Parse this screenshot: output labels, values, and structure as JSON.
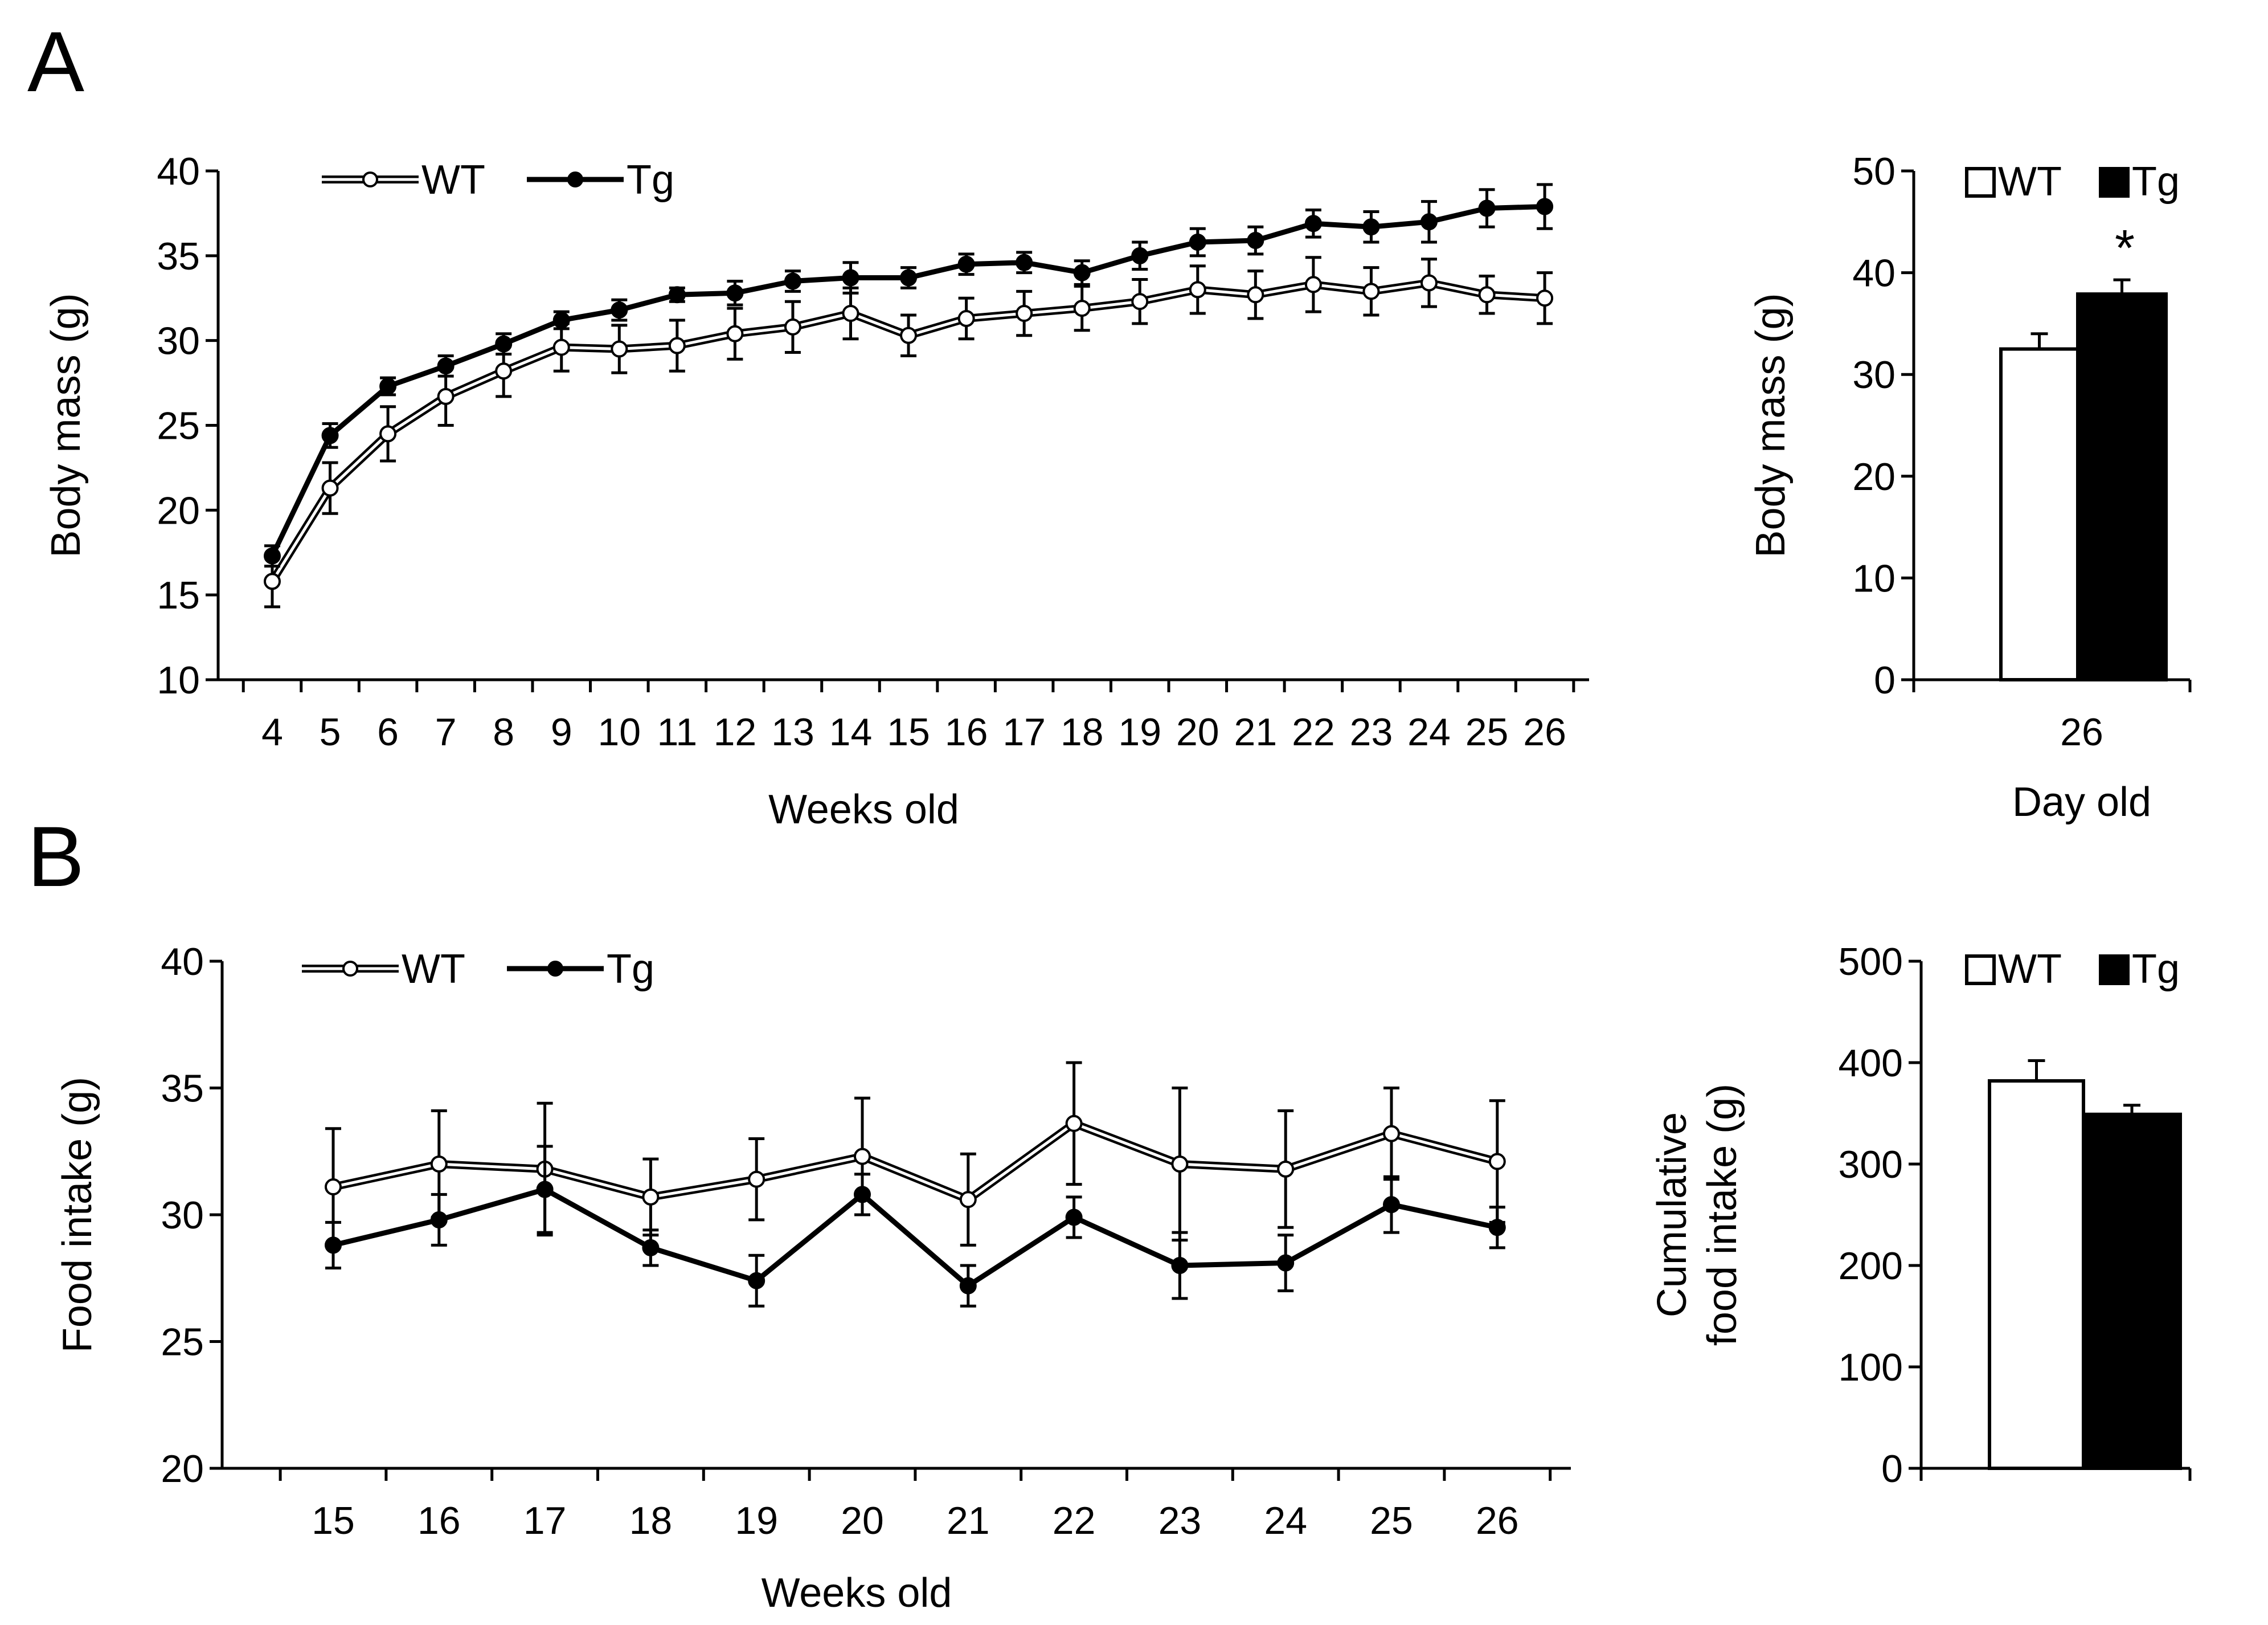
{
  "chart_data": [
    {
      "id": "A-line",
      "panel": "A",
      "type": "line",
      "title": "",
      "xlabel": "Weeks old",
      "ylabel": "Body mass (g)",
      "ylim": [
        10,
        40
      ],
      "yticks": [
        10,
        15,
        20,
        25,
        30,
        35,
        40
      ],
      "categories": [
        "4",
        "5",
        "6",
        "7",
        "8",
        "9",
        "10",
        "11",
        "12",
        "13",
        "14",
        "15",
        "16",
        "17",
        "18",
        "19",
        "20",
        "21",
        "22",
        "23",
        "24",
        "25",
        "26"
      ],
      "legend_position": "top-left",
      "series": [
        {
          "name": "WT",
          "marker": "open",
          "color": "#000000",
          "values": [
            15.8,
            21.3,
            24.5,
            26.7,
            28.2,
            29.6,
            29.5,
            29.7,
            30.4,
            30.8,
            31.6,
            30.3,
            31.3,
            31.6,
            31.9,
            32.3,
            33.0,
            32.7,
            33.3,
            32.9,
            33.4,
            32.7,
            32.5
          ],
          "errors": [
            1.5,
            1.5,
            1.6,
            1.7,
            1.5,
            1.4,
            1.4,
            1.5,
            1.5,
            1.5,
            1.5,
            1.2,
            1.2,
            1.3,
            1.3,
            1.3,
            1.4,
            1.4,
            1.6,
            1.4,
            1.4,
            1.1,
            1.5
          ]
        },
        {
          "name": "Tg",
          "marker": "filled",
          "color": "#000000",
          "values": [
            17.3,
            24.4,
            27.3,
            28.5,
            29.8,
            31.2,
            31.8,
            32.7,
            32.8,
            33.5,
            33.7,
            33.7,
            34.5,
            34.6,
            34.0,
            35.0,
            35.8,
            35.9,
            36.9,
            36.7,
            37.0,
            37.8,
            37.9
          ],
          "errors": [
            0.6,
            0.7,
            0.5,
            0.6,
            0.6,
            0.5,
            0.6,
            0.4,
            0.7,
            0.6,
            0.9,
            0.6,
            0.6,
            0.6,
            0.7,
            0.8,
            0.8,
            0.8,
            0.8,
            0.9,
            1.2,
            1.1,
            1.3
          ]
        }
      ]
    },
    {
      "id": "A-bar",
      "panel": "A",
      "type": "bar",
      "title": "",
      "xlabel": "Day old",
      "ylabel": "Body mass (g)",
      "ylim": [
        0,
        50
      ],
      "yticks": [
        0,
        10,
        20,
        30,
        40,
        50
      ],
      "categories": [
        "26"
      ],
      "legend_position": "top",
      "annotation": "*",
      "series": [
        {
          "name": "WT",
          "fill": "#ffffff",
          "values": [
            32.5
          ],
          "errors": [
            1.5
          ]
        },
        {
          "name": "Tg",
          "fill": "#000000",
          "values": [
            37.9
          ],
          "errors": [
            1.4
          ]
        }
      ]
    },
    {
      "id": "B-line",
      "panel": "B",
      "type": "line",
      "title": "",
      "xlabel": "Weeks old",
      "ylabel": "Food intake (g)",
      "ylim": [
        20,
        40
      ],
      "yticks": [
        20,
        25,
        30,
        35,
        40
      ],
      "categories": [
        "15",
        "16",
        "17",
        "18",
        "19",
        "20",
        "21",
        "22",
        "23",
        "24",
        "25",
        "26"
      ],
      "legend_position": "top-left",
      "series": [
        {
          "name": "WT",
          "marker": "open",
          "color": "#000000",
          "values": [
            31.1,
            32.0,
            31.8,
            30.7,
            31.4,
            32.3,
            30.6,
            33.6,
            32.0,
            31.8,
            33.2,
            32.1
          ],
          "errors": [
            2.3,
            2.1,
            2.6,
            1.5,
            1.6,
            2.3,
            1.8,
            2.4,
            3.0,
            2.3,
            1.8,
            2.4
          ]
        },
        {
          "name": "Tg",
          "marker": "filled",
          "color": "#000000",
          "values": [
            28.8,
            29.8,
            31.0,
            28.7,
            27.4,
            30.8,
            27.2,
            29.9,
            28.0,
            28.1,
            30.4,
            29.5
          ],
          "errors": [
            0.9,
            1.0,
            1.7,
            0.7,
            1.0,
            0.8,
            0.8,
            0.8,
            1.3,
            1.1,
            1.1,
            0.8
          ]
        }
      ]
    },
    {
      "id": "B-bar",
      "panel": "B",
      "type": "bar",
      "title": "",
      "xlabel": "",
      "ylabel": "Cumulative food intake (g)",
      "ylabel_lines": [
        "Cumulative",
        "food intake (g)"
      ],
      "ylim": [
        0,
        500
      ],
      "yticks": [
        0,
        100,
        200,
        300,
        400,
        500
      ],
      "categories": [
        ""
      ],
      "legend_position": "top",
      "series": [
        {
          "name": "WT",
          "fill": "#ffffff",
          "values": [
            382
          ],
          "errors": [
            20
          ]
        },
        {
          "name": "Tg",
          "fill": "#000000",
          "values": [
            349
          ],
          "errors": [
            9
          ]
        }
      ]
    }
  ],
  "panel_labels": {
    "a": "A",
    "b": "B"
  }
}
